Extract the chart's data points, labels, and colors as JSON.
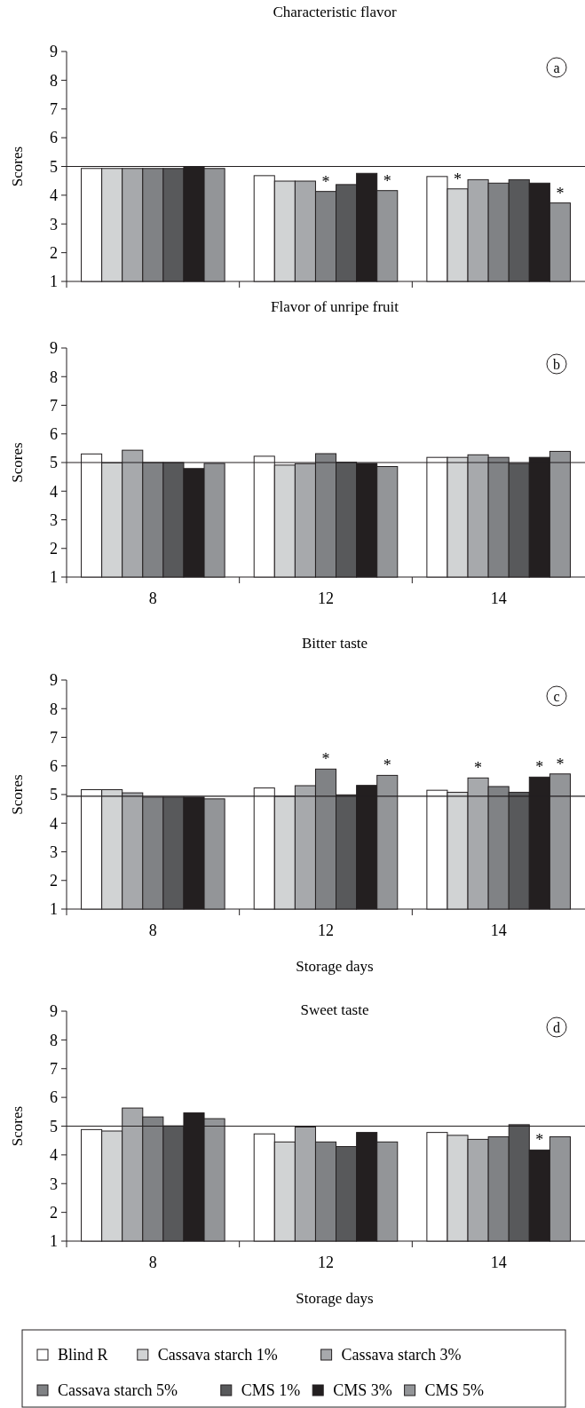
{
  "chart_data": [
    {
      "type": "bar",
      "title": "Characteristic flavor",
      "ylabel": "Scores",
      "categories": [
        null,
        null,
        null
      ],
      "tick_labels": "y",
      "ylim": [
        1,
        9
      ],
      "yticks": [
        1,
        2,
        3,
        4,
        5,
        6,
        7,
        8,
        9
      ],
      "annotations": [
        "a"
      ],
      "ref_lines": [
        {
          "axis": "y",
          "value": 5,
          "color": "#231f20"
        }
      ],
      "series": [
        {
          "color": "#ffffff",
          "values": [
            4.93,
            4.68,
            4.65
          ]
        },
        {
          "color": "#d1d3d4",
          "values": [
            4.93,
            4.49,
            4.22
          ],
          "value_labels": [
            null,
            null,
            "*"
          ]
        },
        {
          "color": "#a7a9ac",
          "values": [
            4.93,
            4.49,
            4.54
          ]
        },
        {
          "color": "#808285",
          "values": [
            4.93,
            4.13,
            4.42
          ],
          "value_labels": [
            null,
            "*",
            null
          ]
        },
        {
          "color": "#58595b",
          "values": [
            4.93,
            4.37,
            4.54
          ]
        },
        {
          "color": "#231f20",
          "values": [
            5.0,
            4.76,
            4.42
          ]
        },
        {
          "color": "#939598",
          "values": [
            4.93,
            4.16,
            3.73
          ],
          "value_labels": [
            null,
            "*",
            "*"
          ]
        }
      ]
    },
    {
      "type": "bar",
      "title": "Flavor of unripe fruit",
      "ylabel": "Scores",
      "categories": [
        "8",
        "12",
        "14"
      ],
      "ylim": [
        1,
        9
      ],
      "yticks": [
        1,
        2,
        3,
        4,
        5,
        6,
        7,
        8,
        9
      ],
      "annotations": [
        "b"
      ],
      "ref_lines": [
        {
          "axis": "y",
          "value": 5,
          "color": "#231f20"
        }
      ],
      "series": [
        {
          "color": "#ffffff",
          "values": [
            5.3,
            5.22,
            5.18
          ]
        },
        {
          "color": "#d1d3d4",
          "values": [
            4.99,
            4.91,
            5.18
          ]
        },
        {
          "color": "#a7a9ac",
          "values": [
            5.43,
            4.96,
            5.27
          ]
        },
        {
          "color": "#808285",
          "values": [
            5.0,
            5.31,
            5.18
          ]
        },
        {
          "color": "#58595b",
          "values": [
            5.0,
            5.01,
            4.97
          ]
        },
        {
          "color": "#231f20",
          "values": [
            4.79,
            4.97,
            5.18
          ]
        },
        {
          "color": "#939598",
          "values": [
            4.97,
            4.86,
            5.39
          ]
        }
      ]
    },
    {
      "type": "bar",
      "title": "Bitter taste",
      "ylabel": "Scores",
      "xlabel": "Storage days",
      "categories": [
        "8",
        "12",
        "14"
      ],
      "ylim": [
        1,
        9
      ],
      "yticks": [
        1,
        2,
        3,
        4,
        5,
        6,
        7,
        8,
        9
      ],
      "annotations": [
        "c"
      ],
      "ref_lines": [
        {
          "axis": "y",
          "value": 4.94,
          "color": "#231f20"
        }
      ],
      "series": [
        {
          "color": "#ffffff",
          "values": [
            5.17,
            5.23,
            5.15
          ]
        },
        {
          "color": "#d1d3d4",
          "values": [
            5.17,
            4.94,
            5.08
          ]
        },
        {
          "color": "#a7a9ac",
          "values": [
            5.06,
            5.31,
            5.58
          ],
          "value_labels": [
            null,
            null,
            "*"
          ]
        },
        {
          "color": "#808285",
          "values": [
            4.91,
            5.89,
            5.28
          ],
          "value_labels": [
            null,
            "*",
            null
          ]
        },
        {
          "color": "#58595b",
          "values": [
            4.91,
            4.99,
            5.08
          ]
        },
        {
          "color": "#231f20",
          "values": [
            4.91,
            5.32,
            5.61
          ],
          "value_labels": [
            null,
            null,
            "*"
          ]
        },
        {
          "color": "#939598",
          "values": [
            4.85,
            5.67,
            5.72
          ],
          "value_labels": [
            null,
            "*",
            "*"
          ]
        }
      ]
    },
    {
      "type": "bar",
      "title": "Sweet taste",
      "ylabel": "Scores",
      "xlabel": "Storage days",
      "categories": [
        "8",
        "12",
        "14"
      ],
      "ylim": [
        1,
        9
      ],
      "yticks": [
        1,
        2,
        3,
        4,
        5,
        6,
        7,
        8,
        9
      ],
      "annotations": [
        "d"
      ],
      "legend": "bottom",
      "ref_lines": [
        {
          "axis": "y",
          "value": 5,
          "color": "#231f20"
        }
      ],
      "series": [
        {
          "name": "Blind R",
          "color": "#ffffff",
          "values": [
            4.88,
            4.73,
            4.78
          ]
        },
        {
          "name": "Cassava starch 1%",
          "color": "#d1d3d4",
          "values": [
            4.83,
            4.45,
            4.68
          ]
        },
        {
          "name": "Cassava starch 3%",
          "color": "#a7a9ac",
          "values": [
            5.63,
            4.97,
            4.54
          ]
        },
        {
          "name": "Cassava starch 5%",
          "color": "#808285",
          "values": [
            5.32,
            4.45,
            4.63
          ]
        },
        {
          "name": "CMS 1%",
          "color": "#58595b",
          "values": [
            5.01,
            4.29,
            5.05
          ]
        },
        {
          "name": "CMS 3%",
          "color": "#231f20",
          "values": [
            5.46,
            4.78,
            4.17
          ],
          "value_labels": [
            null,
            null,
            "*"
          ]
        },
        {
          "name": "CMS 5%",
          "color": "#939598",
          "values": [
            5.26,
            4.45,
            4.63
          ]
        }
      ]
    }
  ]
}
